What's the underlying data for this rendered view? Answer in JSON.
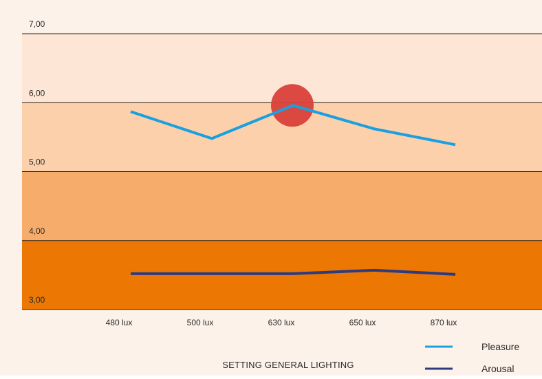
{
  "chart_data": {
    "type": "line",
    "title": "",
    "xlabel": "SETTING GENERAL LIGHTING",
    "ylabel": "",
    "categories": [
      "480 lux",
      "500 lux",
      "630 lux",
      "650 lux",
      "870 lux"
    ],
    "ylim": [
      3,
      7
    ],
    "y_ticks": [
      {
        "value": 7,
        "label": "7,00"
      },
      {
        "value": 6,
        "label": "6,00"
      },
      {
        "value": 5,
        "label": "5,00"
      },
      {
        "value": 4,
        "label": "4,00"
      },
      {
        "value": 3,
        "label": "3,00"
      }
    ],
    "bands": [
      {
        "from": 6,
        "to": 7,
        "color": "#fde6d6"
      },
      {
        "from": 5,
        "to": 6,
        "color": "#fbd0ab"
      },
      {
        "from": 4,
        "to": 5,
        "color": "#f6ac6a"
      },
      {
        "from": 3,
        "to": 4,
        "color": "#ec7702"
      }
    ],
    "series": [
      {
        "name": "Pleasure",
        "color": "#1aa0e0",
        "values": [
          5.87,
          5.48,
          5.96,
          5.62,
          5.39
        ]
      },
      {
        "name": "Arousal",
        "color": "#2c3a80",
        "values": [
          3.52,
          3.52,
          3.52,
          3.57,
          3.51
        ]
      }
    ],
    "highlight": {
      "category": "630 lux",
      "value": 5.96,
      "color": "#d9403a"
    },
    "legend_position": "bottom-right",
    "grid": true,
    "background_color": "#fdf2ea"
  }
}
